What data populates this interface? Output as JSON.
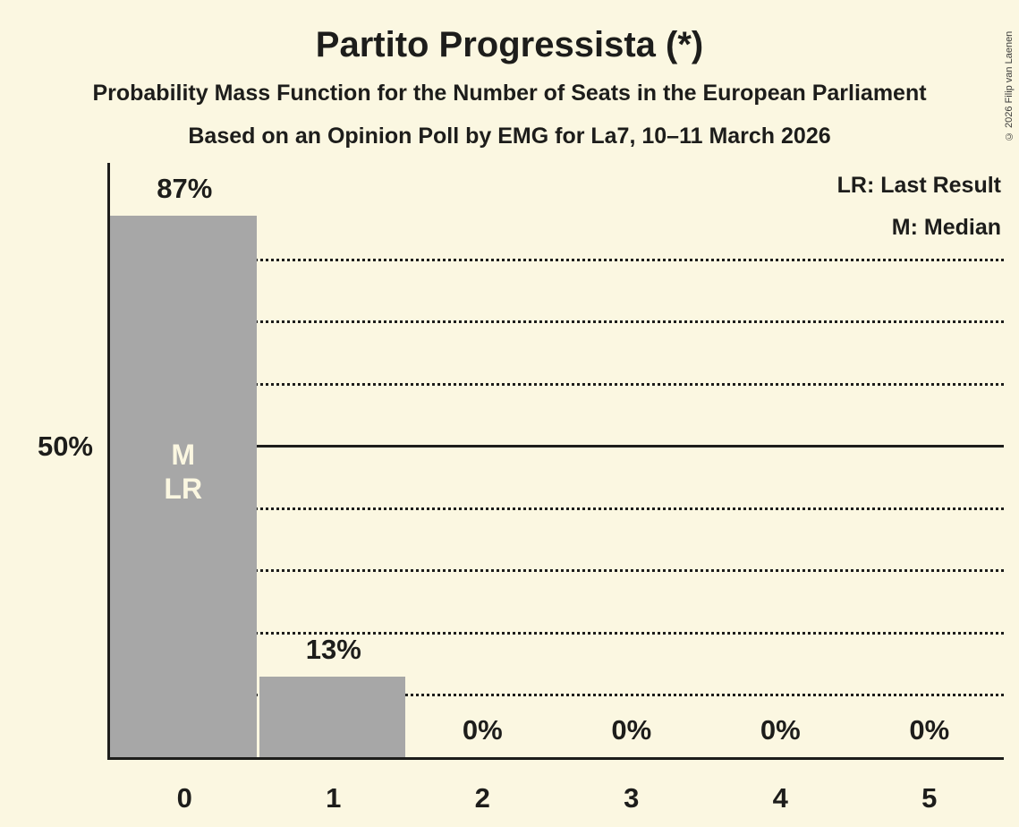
{
  "header": {
    "title": "Partito Progressista (*)",
    "subtitle1": "Probability Mass Function for the Number of Seats in the European Parliament",
    "subtitle2": "Based on an Opinion Poll by EMG for La7, 10–11 March 2026"
  },
  "legend": {
    "lr": "LR: Last Result",
    "m": "M: Median"
  },
  "copyright": "© 2026 Filip van Laenen",
  "colors": {
    "background": "#FBF7E1",
    "bar": "#A7A7A7",
    "text": "#1D1D1B",
    "annotation_text": "#FBF7E1"
  },
  "chart_data": {
    "type": "bar",
    "title": "Partito Progressista (*)",
    "categories": [
      "0",
      "1",
      "2",
      "3",
      "4",
      "5"
    ],
    "values": [
      87,
      13,
      0,
      0,
      0,
      0
    ],
    "bar_labels": [
      "87%",
      "13%",
      "0%",
      "0%",
      "0%",
      "0%"
    ],
    "xlabel": "",
    "ylabel": "",
    "ylim": [
      0,
      95
    ],
    "y_axis_label": {
      "percent": 50,
      "text": "50%"
    },
    "solid_gridline_percent": 50,
    "dotted_gridlines_percent": [
      10,
      20,
      30,
      40,
      60,
      70,
      80
    ],
    "annotations": [
      {
        "category": "0",
        "lines": [
          "M",
          "LR"
        ]
      }
    ],
    "legend_position": "top-right",
    "grid": "horizontal dotted every 10%, solid at 50%"
  }
}
